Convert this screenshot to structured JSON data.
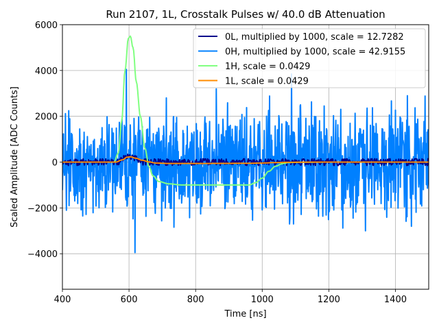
{
  "chart_data": {
    "type": "line",
    "title": "Run 2107, 1L, Crosstalk Pulses w/ 40.0 dB Attenuation",
    "xlabel": "Time [ns]",
    "ylabel": "Scaled Amplitude [ADC Counts]",
    "xlim": [
      400,
      1500
    ],
    "ylim": [
      -5550,
      6000
    ],
    "xticks": [
      400,
      600,
      800,
      1000,
      1200,
      1400
    ],
    "xtick_labels": [
      "400",
      "600",
      "800",
      "1000",
      "1200",
      "1400"
    ],
    "yticks": [
      -4000,
      -2000,
      0,
      2000,
      4000,
      6000
    ],
    "ytick_labels": [
      "−4000",
      "−2000",
      "0",
      "2000",
      "4000",
      "6000"
    ],
    "grid": true,
    "legend_position": "top-right",
    "series": [
      {
        "name": "0L, multiplied by 1000,  scale = 12.7282",
        "color": "#00008b",
        "style": "noise",
        "noise_amplitude": 150,
        "points": [
          [
            400,
            0
          ],
          [
            560,
            0
          ],
          [
            590,
            150
          ],
          [
            600,
            300
          ],
          [
            615,
            150
          ],
          [
            650,
            0
          ],
          [
            1500,
            0
          ]
        ]
      },
      {
        "name": "0H, multiplied by 1000,  scale = 42.9155",
        "color": "#0080ff",
        "style": "noise",
        "noise_sigma": 1100,
        "noise_seed": 2107,
        "envelope_min": -2900,
        "envelope_max": 2900,
        "spikes": [
          [
            592,
            4050
          ],
          [
            618,
            -3950
          ],
          [
            862,
            3200
          ],
          [
            1088,
            3850
          ],
          [
            1094,
            -2700
          ],
          [
            1310,
            -3000
          ],
          [
            1448,
            -2800
          ],
          [
            1436,
            2900
          ]
        ]
      },
      {
        "name": "1H,  scale = 0.0429",
        "color": "#80ff80",
        "style": "smooth",
        "points": [
          [
            400,
            0
          ],
          [
            555,
            0
          ],
          [
            568,
            400
          ],
          [
            578,
            1800
          ],
          [
            588,
            4000
          ],
          [
            598,
            5400
          ],
          [
            604,
            5500
          ],
          [
            612,
            5000
          ],
          [
            622,
            3500
          ],
          [
            634,
            2000
          ],
          [
            648,
            600
          ],
          [
            660,
            -200
          ],
          [
            672,
            -600
          ],
          [
            690,
            -850
          ],
          [
            720,
            -950
          ],
          [
            760,
            -1000
          ],
          [
            800,
            -1000
          ],
          [
            900,
            -1000
          ],
          [
            960,
            -1000
          ],
          [
            980,
            -900
          ],
          [
            1000,
            -700
          ],
          [
            1020,
            -400
          ],
          [
            1040,
            -180
          ],
          [
            1060,
            -70
          ],
          [
            1080,
            -20
          ],
          [
            1100,
            -10
          ],
          [
            1200,
            0
          ],
          [
            1500,
            0
          ]
        ]
      },
      {
        "name": "1L,  scale = 0.0429",
        "color": "#ff8c00",
        "style": "smooth",
        "points": [
          [
            400,
            0
          ],
          [
            560,
            0
          ],
          [
            580,
            100
          ],
          [
            595,
            220
          ],
          [
            605,
            230
          ],
          [
            620,
            170
          ],
          [
            640,
            80
          ],
          [
            660,
            10
          ],
          [
            680,
            -40
          ],
          [
            720,
            -60
          ],
          [
            800,
            -60
          ],
          [
            900,
            -55
          ],
          [
            960,
            -50
          ],
          [
            1000,
            -40
          ],
          [
            1040,
            -20
          ],
          [
            1080,
            -5
          ],
          [
            1150,
            0
          ],
          [
            1500,
            0
          ]
        ]
      }
    ]
  }
}
